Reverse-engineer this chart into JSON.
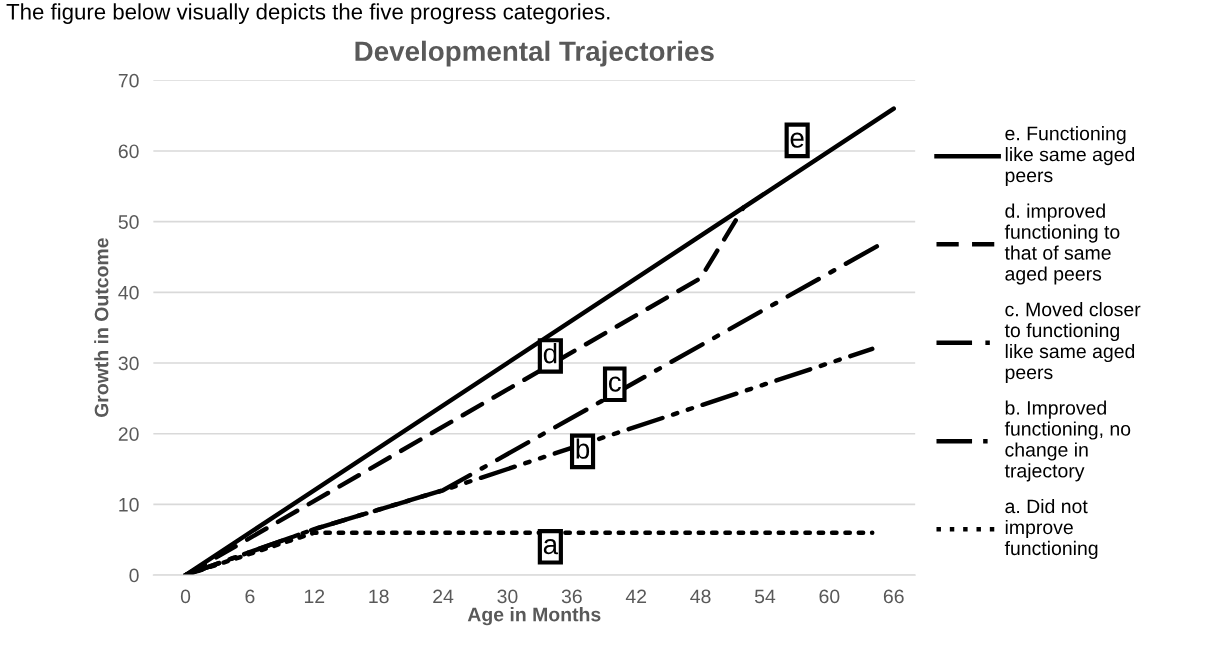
{
  "chart_data": {
    "type": "line",
    "title": "Developmental Trajectories",
    "xlabel": "Age in Months",
    "ylabel": "Growth in Outcome",
    "series": [
      {
        "name": "e. Functioning like same aged peers",
        "color": "#000000",
        "line_style": "solid",
        "x": [
          0,
          66
        ],
        "values": [
          0,
          66
        ]
      },
      {
        "name": "d. improved functioning to that of same aged peers",
        "color": "#000000",
        "line_style": "dashed",
        "x": [
          0,
          48,
          52
        ],
        "values": [
          0,
          42,
          52
        ]
      },
      {
        "name": "c. Moved closer to functioning like same aged peers",
        "color": "#000000",
        "line_style": "dashdot",
        "x": [
          0,
          12,
          24,
          65
        ],
        "values": [
          0,
          6.5,
          12,
          47
        ]
      },
      {
        "name": "b. Improved functioning, no change in trajectory",
        "color": "#000000",
        "line_style": "dashdotdot",
        "x": [
          0,
          12,
          24,
          64
        ],
        "values": [
          0,
          6.5,
          12,
          32
        ]
      },
      {
        "name": "a. Did not improve functioning",
        "color": "#000000",
        "line_style": "dotted",
        "x": [
          0,
          12,
          64
        ],
        "values": [
          0,
          6,
          6
        ]
      }
    ],
    "annotations": [
      "The figure below visually depicts the five progress categories.",
      {
        "text": "e",
        "x": 57,
        "y": 61.5
      },
      {
        "text": "d",
        "x": 34,
        "y": 31
      },
      {
        "text": "c",
        "x": 40,
        "y": 27
      },
      {
        "text": "b",
        "x": 37,
        "y": 17.5
      },
      {
        "text": "a",
        "x": 34,
        "y": 4
      }
    ],
    "xlim": [
      -3,
      68
    ],
    "ylim": [
      0,
      70
    ],
    "xticks": [
      0,
      6,
      12,
      18,
      24,
      30,
      36,
      42,
      48,
      54,
      60,
      66
    ],
    "yticks": [
      0,
      10,
      20,
      30,
      40,
      50,
      60,
      70
    ],
    "grid": "y",
    "legend": "right",
    "marker": "none"
  }
}
